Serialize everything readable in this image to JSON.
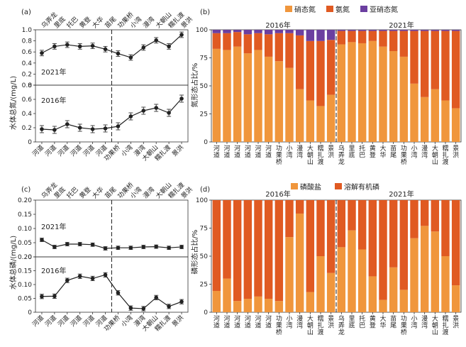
{
  "chart_data": [
    {
      "id": "a",
      "type": "line",
      "panel_label": "(a)",
      "ylabel": "水体总氮/(mg/L)",
      "top_x": [
        "乌弄龙",
        "里底",
        "托巴",
        "黄登",
        "大华",
        "苗尾",
        "功果桥",
        "小湾",
        "漫湾",
        "大朝山",
        "糯扎渡",
        "景洪"
      ],
      "bottom_x": [
        "河道",
        "河道",
        "河道",
        "河道",
        "河道",
        "河道",
        "功果桥",
        "小湾",
        "漫湾",
        "大朝山",
        "糯扎渡",
        "景洪"
      ],
      "divider_after_index": 5.5,
      "sub": [
        {
          "label": "2021年",
          "ylim": [
            0,
            1.0
          ],
          "yticks": [
            "0",
            "0.2",
            "0.4",
            "0.6",
            "0.8",
            "1.0"
          ],
          "values": [
            0.58,
            0.7,
            0.73,
            0.7,
            0.71,
            0.65,
            0.57,
            0.5,
            0.68,
            0.81,
            0.7,
            0.91
          ],
          "err": [
            0.05,
            0.05,
            0.05,
            0.05,
            0.05,
            0.05,
            0.05,
            0.05,
            0.05,
            0.05,
            0.05,
            0.05
          ]
        },
        {
          "label": "2016年",
          "ylim": [
            0,
            0.8
          ],
          "yticks": [
            "0",
            "0.2",
            "0.4",
            "0.6",
            "0.8"
          ],
          "values": [
            0.18,
            0.17,
            0.25,
            0.2,
            0.18,
            0.19,
            0.22,
            0.36,
            0.44,
            0.48,
            0.41,
            0.61
          ],
          "err": [
            0.05,
            0.05,
            0.05,
            0.05,
            0.05,
            0.05,
            0.05,
            0.05,
            0.05,
            0.05,
            0.05,
            0.05
          ]
        }
      ]
    },
    {
      "id": "b",
      "type": "bar",
      "stacked": true,
      "panel_label": "(b)",
      "ylabel": "氮形态占比/%",
      "legend": [
        "硝态氮",
        "氨氮",
        "亚硝态氮"
      ],
      "colors": [
        "#f0963c",
        "#e05a22",
        "#6b3fa0"
      ],
      "group_labels": [
        "2016年",
        "2021年"
      ],
      "ylim": [
        0,
        100
      ],
      "yticks": [
        "0",
        "25",
        "50",
        "75",
        "100"
      ],
      "categories": [
        "河道",
        "河道",
        "河道",
        "河道",
        "河道",
        "河道",
        "功果桥",
        "小湾",
        "漫湾",
        "大朝山",
        "糯扎渡",
        "景洪",
        "乌弄龙",
        "里底",
        "托巴",
        "黄登",
        "大华",
        "苗尾",
        "功果桥",
        "小湾",
        "漫湾",
        "大朝山",
        "糯扎渡",
        "景洪"
      ],
      "split_after": 11,
      "series": [
        {
          "name": "硝态氮",
          "values": [
            83,
            82,
            85,
            79,
            82,
            76,
            72,
            66,
            47,
            37,
            32,
            42,
            87,
            89,
            88,
            90,
            85,
            81,
            76,
            52,
            40,
            47,
            37,
            30
          ]
        },
        {
          "name": "氨氮",
          "values": [
            14,
            15,
            13,
            17,
            15,
            20,
            25,
            31,
            48,
            53,
            58,
            49,
            12,
            10,
            11,
            9,
            14,
            18,
            23,
            47,
            59,
            52,
            62,
            69
          ]
        },
        {
          "name": "亚硝态氮",
          "values": [
            3,
            3,
            2,
            4,
            3,
            4,
            3,
            3,
            5,
            10,
            10,
            9,
            1,
            1,
            1,
            1,
            1,
            1,
            1,
            1,
            1,
            1,
            1,
            1
          ]
        }
      ]
    },
    {
      "id": "c",
      "type": "line",
      "panel_label": "(c)",
      "ylabel": "水体总磷/(mg/L)",
      "top_x": [
        "乌弄龙",
        "里底",
        "托巴",
        "黄登",
        "大华",
        "苗尾",
        "功果桥",
        "小湾",
        "漫湾",
        "大朝山",
        "糯扎渡",
        "景洪"
      ],
      "bottom_x": [
        "河道",
        "河道",
        "河道",
        "河道",
        "河道",
        "河道",
        "功果桥",
        "小湾",
        "漫湾",
        "大朝山",
        "糯扎渡",
        "景洪"
      ],
      "divider_after_index": 5.5,
      "sub": [
        {
          "label": "2021年",
          "ylim": [
            0,
            0.2
          ],
          "yticks": [
            "0",
            "0.05",
            "0.10",
            "0.15",
            "0.20"
          ],
          "values": [
            0.06,
            0.035,
            0.045,
            0.045,
            0.043,
            0.03,
            0.032,
            0.032,
            0.035,
            0.036,
            0.032,
            0.035
          ],
          "err": [
            0.006,
            0.006,
            0.006,
            0.006,
            0.006,
            0.006,
            0.006,
            0.006,
            0.006,
            0.006,
            0.006,
            0.006
          ]
        },
        {
          "label": "2016年",
          "ylim": [
            0,
            0.2
          ],
          "yticks": [
            "0",
            "0.05",
            "0.10",
            "0.15",
            "0.20"
          ],
          "values": [
            0.057,
            0.058,
            0.115,
            0.13,
            0.122,
            0.135,
            0.07,
            0.015,
            0.013,
            0.053,
            0.021,
            0.038
          ],
          "err": [
            0.008,
            0.008,
            0.008,
            0.008,
            0.008,
            0.008,
            0.008,
            0.008,
            0.008,
            0.008,
            0.008,
            0.008
          ]
        }
      ]
    },
    {
      "id": "d",
      "type": "bar",
      "stacked": true,
      "panel_label": "(d)",
      "ylabel": "磷形态占比/%",
      "legend": [
        "磷酸盐",
        "溶解有机磷"
      ],
      "colors": [
        "#f0963c",
        "#e05a22"
      ],
      "group_labels": [
        "2016年",
        "2021年"
      ],
      "ylim": [
        0,
        100
      ],
      "yticks": [
        "0",
        "25",
        "50",
        "75",
        "100"
      ],
      "categories": [
        "河道",
        "河道",
        "河道",
        "河道",
        "河道",
        "河道",
        "功果桥",
        "小湾",
        "漫湾",
        "大朝山",
        "糯扎渡",
        "景洪",
        "乌弄龙",
        "里底",
        "托巴",
        "黄登",
        "大华",
        "苗尾",
        "功果桥",
        "小湾",
        "漫湾",
        "大朝山",
        "糯扎渡",
        "景洪"
      ],
      "split_after": 11,
      "series": [
        {
          "name": "磷酸盐",
          "values": [
            19,
            30,
            10,
            12,
            14,
            12,
            10,
            67,
            88,
            18,
            50,
            35,
            58,
            73,
            56,
            32,
            11,
            40,
            20,
            66,
            77,
            72,
            50,
            24
          ]
        },
        {
          "name": "溶解有机磷",
          "values": [
            81,
            70,
            90,
            88,
            86,
            88,
            90,
            33,
            12,
            82,
            50,
            65,
            42,
            27,
            44,
            68,
            89,
            60,
            80,
            34,
            23,
            28,
            50,
            76
          ]
        }
      ]
    }
  ]
}
